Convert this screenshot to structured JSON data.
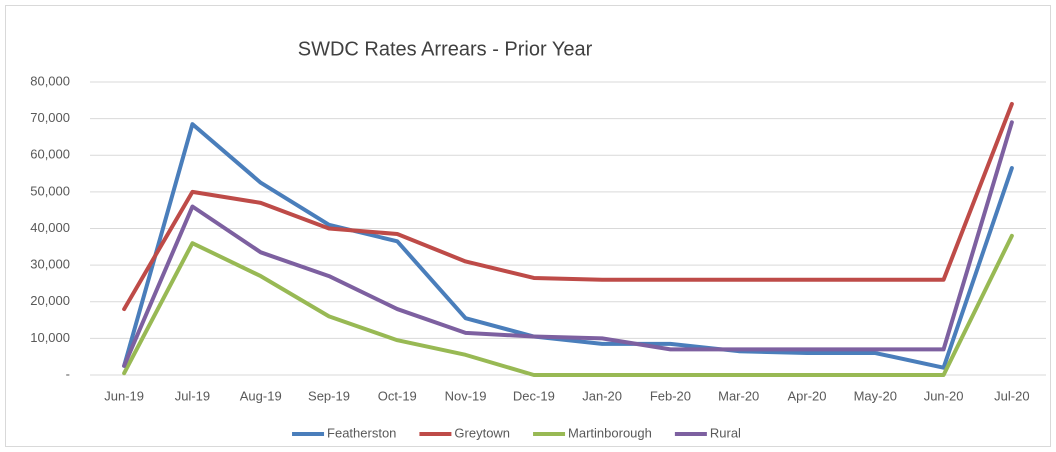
{
  "chart_data": {
    "type": "line",
    "title": "SWDC Rates Arrears - Prior Year",
    "categories": [
      "Jun-19",
      "Jul-19",
      "Aug-19",
      "Sep-19",
      "Oct-19",
      "Nov-19",
      "Dec-19",
      "Jan-20",
      "Feb-20",
      "Mar-20",
      "Apr-20",
      "May-20",
      "Jun-20",
      "Jul-20"
    ],
    "series": [
      {
        "name": "Featherston",
        "color": "#4a7ebb",
        "values": [
          2500,
          68500,
          52500,
          41000,
          36500,
          15500,
          10500,
          8500,
          8500,
          6500,
          6000,
          6000,
          2000,
          56500
        ]
      },
      {
        "name": "Greytown",
        "color": "#be4b48",
        "values": [
          18000,
          50000,
          47000,
          40000,
          38500,
          31000,
          26500,
          26000,
          26000,
          26000,
          26000,
          26000,
          26000,
          74000
        ]
      },
      {
        "name": "Martinborough",
        "color": "#98b954",
        "values": [
          500,
          36000,
          27000,
          16000,
          9500,
          5500,
          0,
          0,
          0,
          0,
          0,
          0,
          0,
          38000
        ]
      },
      {
        "name": "Rural",
        "color": "#7d60a0",
        "values": [
          2500,
          46000,
          33500,
          27000,
          18000,
          11500,
          10500,
          10000,
          7000,
          7000,
          7000,
          7000,
          7000,
          69000
        ]
      }
    ],
    "ylim": [
      0,
      80000
    ],
    "yticks": [
      {
        "value": 0,
        "label": "-"
      },
      {
        "value": 10000,
        "label": "10,000"
      },
      {
        "value": 20000,
        "label": "20,000"
      },
      {
        "value": 30000,
        "label": "30,000"
      },
      {
        "value": 40000,
        "label": "40,000"
      },
      {
        "value": 50000,
        "label": "50,000"
      },
      {
        "value": 60000,
        "label": "60,000"
      },
      {
        "value": 70000,
        "label": "70,000"
      },
      {
        "value": 80000,
        "label": "80,000"
      }
    ],
    "grid": true,
    "legend": "bottom"
  }
}
